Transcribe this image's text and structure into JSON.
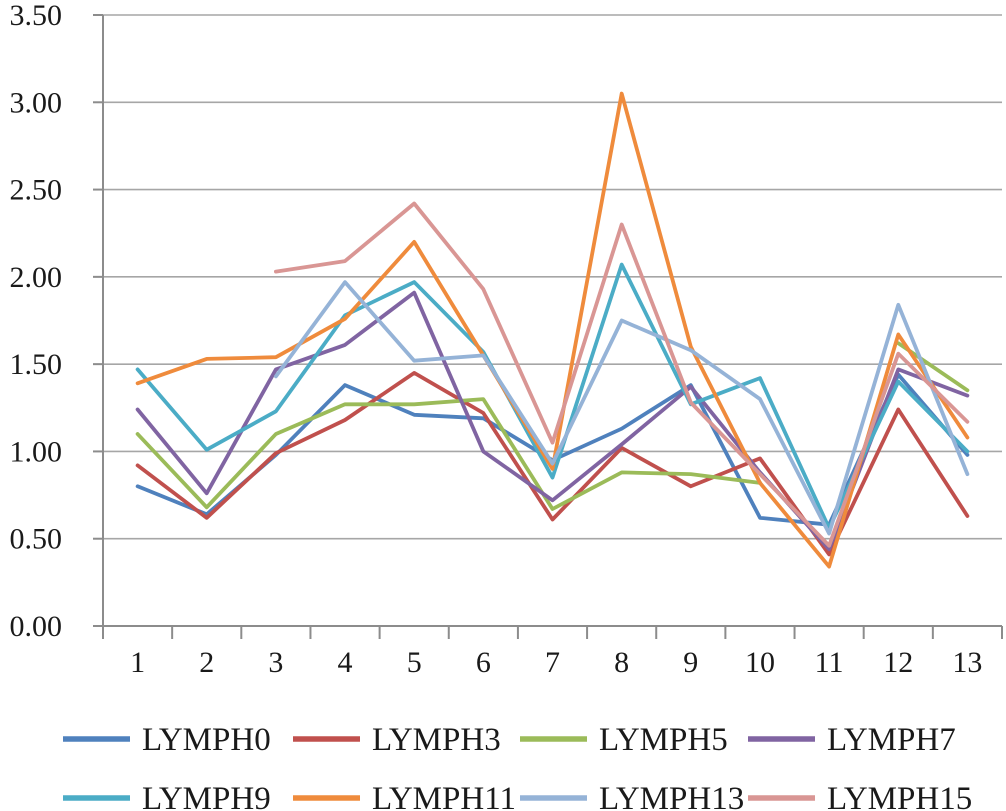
{
  "page": {
    "background_color": "#ffffff",
    "text_color": "#1a1a1a"
  },
  "chart_data": {
    "type": "line",
    "title": "",
    "xlabel": "",
    "ylabel": "",
    "categories": [
      "1",
      "2",
      "3",
      "4",
      "5",
      "6",
      "7",
      "8",
      "9",
      "10",
      "11",
      "12",
      "13"
    ],
    "ylim": [
      0,
      3.5
    ],
    "ytick_step": 0.5,
    "yticks": [
      "0.00",
      "0.50",
      "1.00",
      "1.50",
      "2.00",
      "2.50",
      "3.00",
      "3.50"
    ],
    "grid": "horizontal-only",
    "legend_position": "bottom",
    "series": [
      {
        "name": "LYMPH0",
        "color": "#4F81BD",
        "values": [
          0.8,
          0.64,
          0.98,
          1.38,
          1.21,
          1.19,
          0.95,
          1.13,
          1.38,
          0.62,
          0.58,
          1.44,
          0.98
        ]
      },
      {
        "name": "LYMPH3",
        "color": "#C0504D",
        "values": [
          0.92,
          0.62,
          0.99,
          1.18,
          1.45,
          1.22,
          0.61,
          1.02,
          0.8,
          0.96,
          0.41,
          1.24,
          0.63
        ]
      },
      {
        "name": "LYMPH5",
        "color": "#9BBB59",
        "values": [
          1.1,
          0.68,
          1.1,
          1.27,
          1.27,
          1.3,
          0.67,
          0.88,
          0.87,
          0.82,
          null,
          1.62,
          1.35
        ]
      },
      {
        "name": "LYMPH7",
        "color": "#8064A2",
        "values": [
          1.24,
          0.76,
          1.47,
          1.61,
          1.91,
          1.0,
          0.72,
          1.04,
          1.37,
          0.88,
          0.44,
          1.47,
          1.32
        ]
      },
      {
        "name": "LYMPH9",
        "color": "#4BACC6",
        "values": [
          1.47,
          1.01,
          1.23,
          1.78,
          1.97,
          1.57,
          0.85,
          2.07,
          1.27,
          1.42,
          0.56,
          1.4,
          1.0
        ]
      },
      {
        "name": "LYMPH11",
        "color": "#EF8B3C",
        "values": [
          1.39,
          1.53,
          1.54,
          1.76,
          2.2,
          1.55,
          0.9,
          3.05,
          1.6,
          0.82,
          0.34,
          1.67,
          1.08
        ]
      },
      {
        "name": "LYMPH13",
        "color": "#95B3D7",
        "values": [
          null,
          null,
          1.43,
          1.97,
          1.52,
          1.55,
          0.93,
          1.75,
          1.58,
          1.3,
          0.53,
          1.84,
          0.87
        ]
      },
      {
        "name": "LYMPH15",
        "color": "#D99694",
        "values": [
          null,
          null,
          2.03,
          2.09,
          2.42,
          1.93,
          1.05,
          2.3,
          1.28,
          0.87,
          0.46,
          1.56,
          1.17
        ]
      }
    ],
    "legend_rows": [
      [
        "LYMPH0",
        "LYMPH3",
        "LYMPH5",
        "LYMPH7"
      ],
      [
        "LYMPH9",
        "LYMPH11",
        "LYMPH13",
        "LYMPH15"
      ]
    ],
    "axis_color": "#8c8c8c",
    "grid_color": "#a6a6a6",
    "tick_label_color": "#1a1a1a"
  }
}
